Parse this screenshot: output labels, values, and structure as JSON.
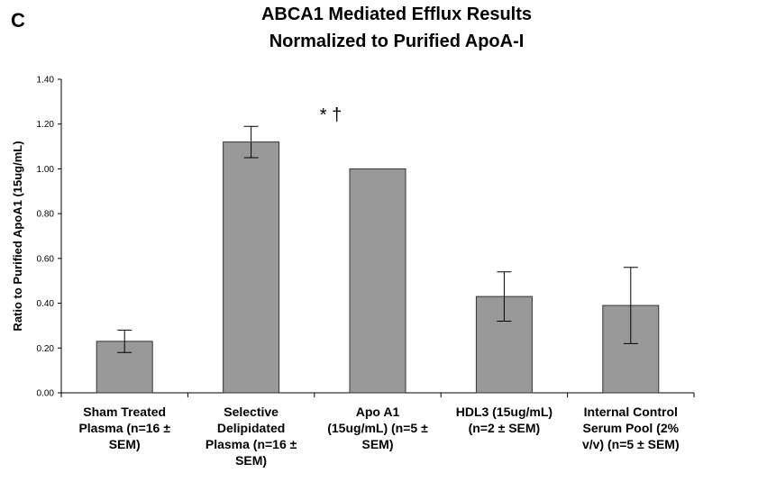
{
  "chart_data": {
    "type": "bar",
    "panel_label": "C",
    "title": "ABCA1 Mediated Efflux Results\nNormalized to Purified ApoA-I",
    "y_label": "Ratio to Purified ApoA1 (15ug/mL)",
    "annotation": "* †",
    "categories": [
      "Sham Treated\nPlasma (n=16 ±\nSEM)",
      "Selective\nDelipidated\nPlasma (n=16 ±\nSEM)",
      "Apo A1\n(15ug/mL) (n=5 ±\nSEM)",
      "HDL3 (15ug/mL)\n(n=2 ± SEM)",
      "Internal Control\nSerum Pool (2%\nv/v) (n=5 ± SEM)"
    ],
    "series": [
      {
        "color": "#999999",
        "values": [
          0.23,
          1.12,
          1.0,
          0.43,
          0.39
        ],
        "errors": [
          0.05,
          0.07,
          null,
          0.11,
          0.17
        ]
      }
    ],
    "ylim": [
      0,
      1.4
    ],
    "yticks": [
      {
        "value": 0,
        "label": "0.00"
      },
      {
        "value": 0.2,
        "label": "0.20"
      },
      {
        "value": 0.4,
        "label": "0.40"
      },
      {
        "value": 0.6,
        "label": "0.60"
      },
      {
        "value": 0.8,
        "label": "0.80"
      },
      {
        "value": 1.0,
        "label": "1.00"
      },
      {
        "value": 1.2,
        "label": "1.20"
      },
      {
        "value": 1.4,
        "label": "1.40"
      }
    ]
  }
}
